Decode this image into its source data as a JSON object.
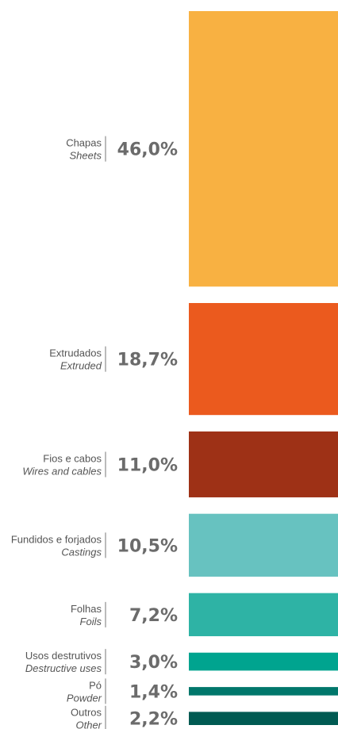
{
  "chart_data": {
    "type": "bar",
    "orientation": "horizontal-stacked-height",
    "title": "",
    "categories": [
      {
        "label": "Chapas",
        "label_en": "Sheets",
        "value": 46.0,
        "display": "46,0%",
        "color": "#F8B142"
      },
      {
        "label": "Extrudados",
        "label_en": "Extruded",
        "value": 18.7,
        "display": "18,7%",
        "color": "#EB5A1E"
      },
      {
        "label": "Fios e cabos",
        "label_en": "Wires and cables",
        "value": 11.0,
        "display": "11,0%",
        "color": "#9E3116"
      },
      {
        "label": "Fundidos e forjados",
        "label_en": "Castings",
        "value": 10.5,
        "display": "10,5%",
        "color": "#67C2C0"
      },
      {
        "label": "Folhas",
        "label_en": "Foils",
        "value": 7.2,
        "display": "7,2%",
        "color": "#2EB3A5"
      },
      {
        "label": "Usos destrutivos",
        "label_en": "Destructive uses",
        "value": 3.0,
        "display": "3,0%",
        "color": "#00A48F"
      },
      {
        "label": "Pó",
        "label_en": "Powder",
        "value": 1.4,
        "display": "1,4%",
        "color": "#00776B"
      },
      {
        "label": "Outros",
        "label_en": "Other",
        "value": 2.2,
        "display": "2,2%",
        "color": "#005A52"
      }
    ],
    "unit": "%"
  }
}
